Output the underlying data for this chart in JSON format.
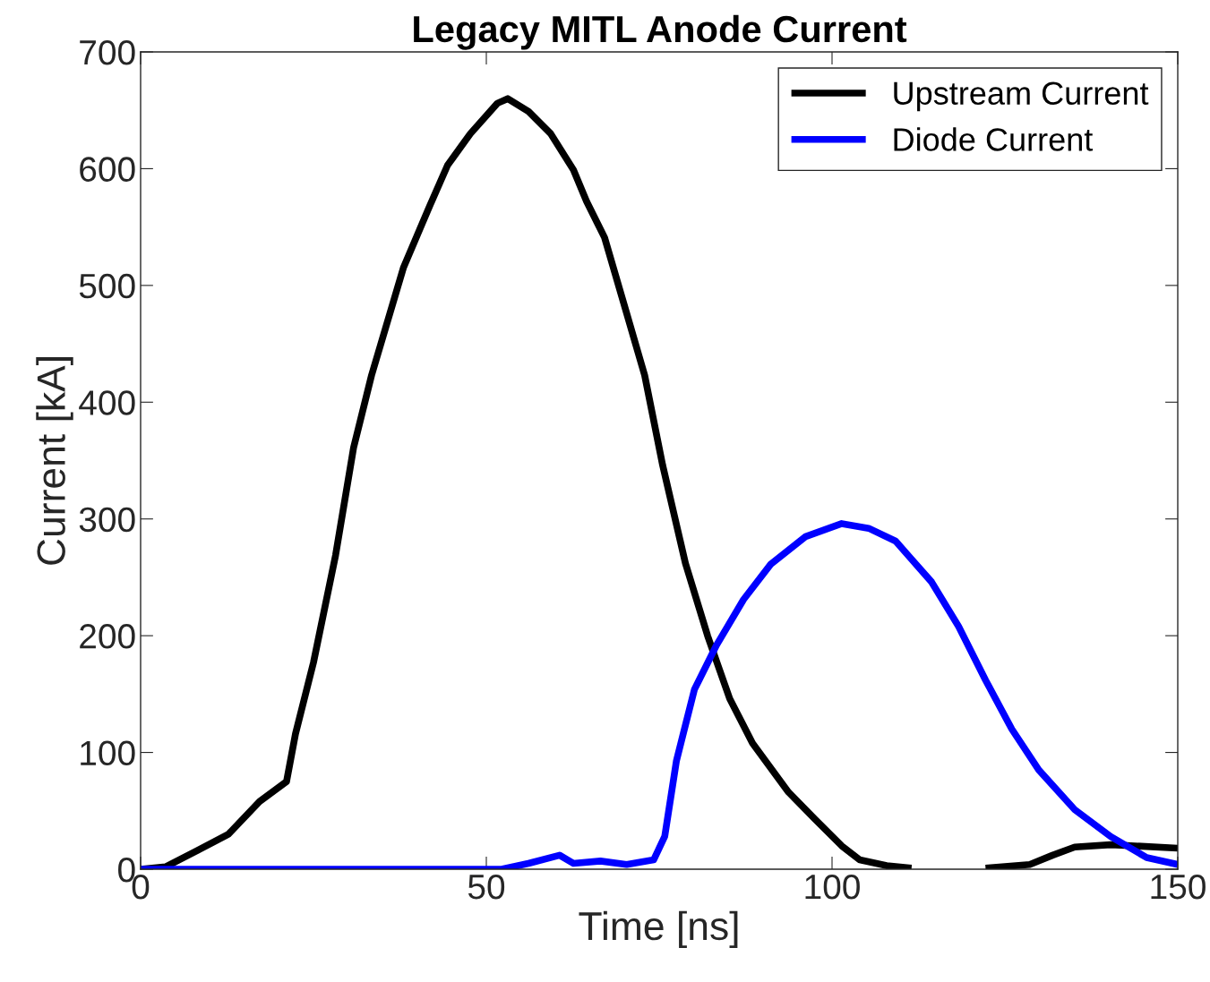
{
  "chart_data": {
    "type": "line",
    "title": "Legacy MITL Anode Current",
    "xlabel": "Time [ns]",
    "ylabel": "Current [kA]",
    "xlim": [
      0,
      150
    ],
    "xticks": [
      0,
      50,
      100,
      150
    ],
    "ylim": [
      0,
      700
    ],
    "yticks": [
      0,
      100,
      200,
      300,
      400,
      500,
      600,
      700
    ],
    "grid": false,
    "legend": "top right",
    "line_style": "solid",
    "marker": "none",
    "series": [
      {
        "name": "Upstream Current",
        "color": "#000000",
        "x": [
          0,
          3.6,
          8.2,
          12.7,
          17.2,
          21.1,
          22.4,
          25.0,
          28.2,
          30.8,
          33.4,
          38.0,
          41.8,
          44.4,
          47.7,
          51.6,
          53.1,
          56.1,
          59.3,
          62.6,
          64.5,
          67.1,
          70.3,
          72.9,
          75.5,
          78.8,
          82.0,
          85.2,
          88.5,
          93.7,
          97.5,
          101.4,
          104.0,
          107.9,
          111.5,
          117,
          122.2,
          128.6,
          131.9,
          135.1,
          140.3,
          150
        ],
        "values": [
          0,
          2,
          16,
          30,
          58,
          75,
          116,
          177,
          269,
          361,
          423,
          515,
          568,
          603,
          630,
          656,
          660,
          649,
          630,
          599,
          572,
          541,
          476,
          423,
          346,
          262,
          200,
          146,
          108,
          66,
          43,
          20,
          8,
          3,
          1,
          null,
          1,
          4,
          12,
          19,
          21,
          18
        ]
      },
      {
        "name": "Diode Current",
        "color": "#0000ff",
        "x": [
          0,
          52.2,
          56.1,
          60.6,
          62.6,
          66.5,
          70.3,
          74.2,
          75.8,
          77.5,
          80.1,
          83.3,
          87.2,
          91.1,
          96.2,
          101.4,
          105.3,
          109.2,
          114.4,
          118.3,
          122.2,
          126.0,
          129.9,
          135.1,
          140.3,
          145.5,
          150
        ],
        "values": [
          0,
          0,
          5,
          12,
          5,
          7,
          4,
          8,
          28,
          93,
          154,
          192,
          231,
          261,
          285,
          296,
          292,
          281,
          246,
          208,
          162,
          120,
          85,
          51,
          28,
          10,
          4
        ]
      }
    ]
  }
}
